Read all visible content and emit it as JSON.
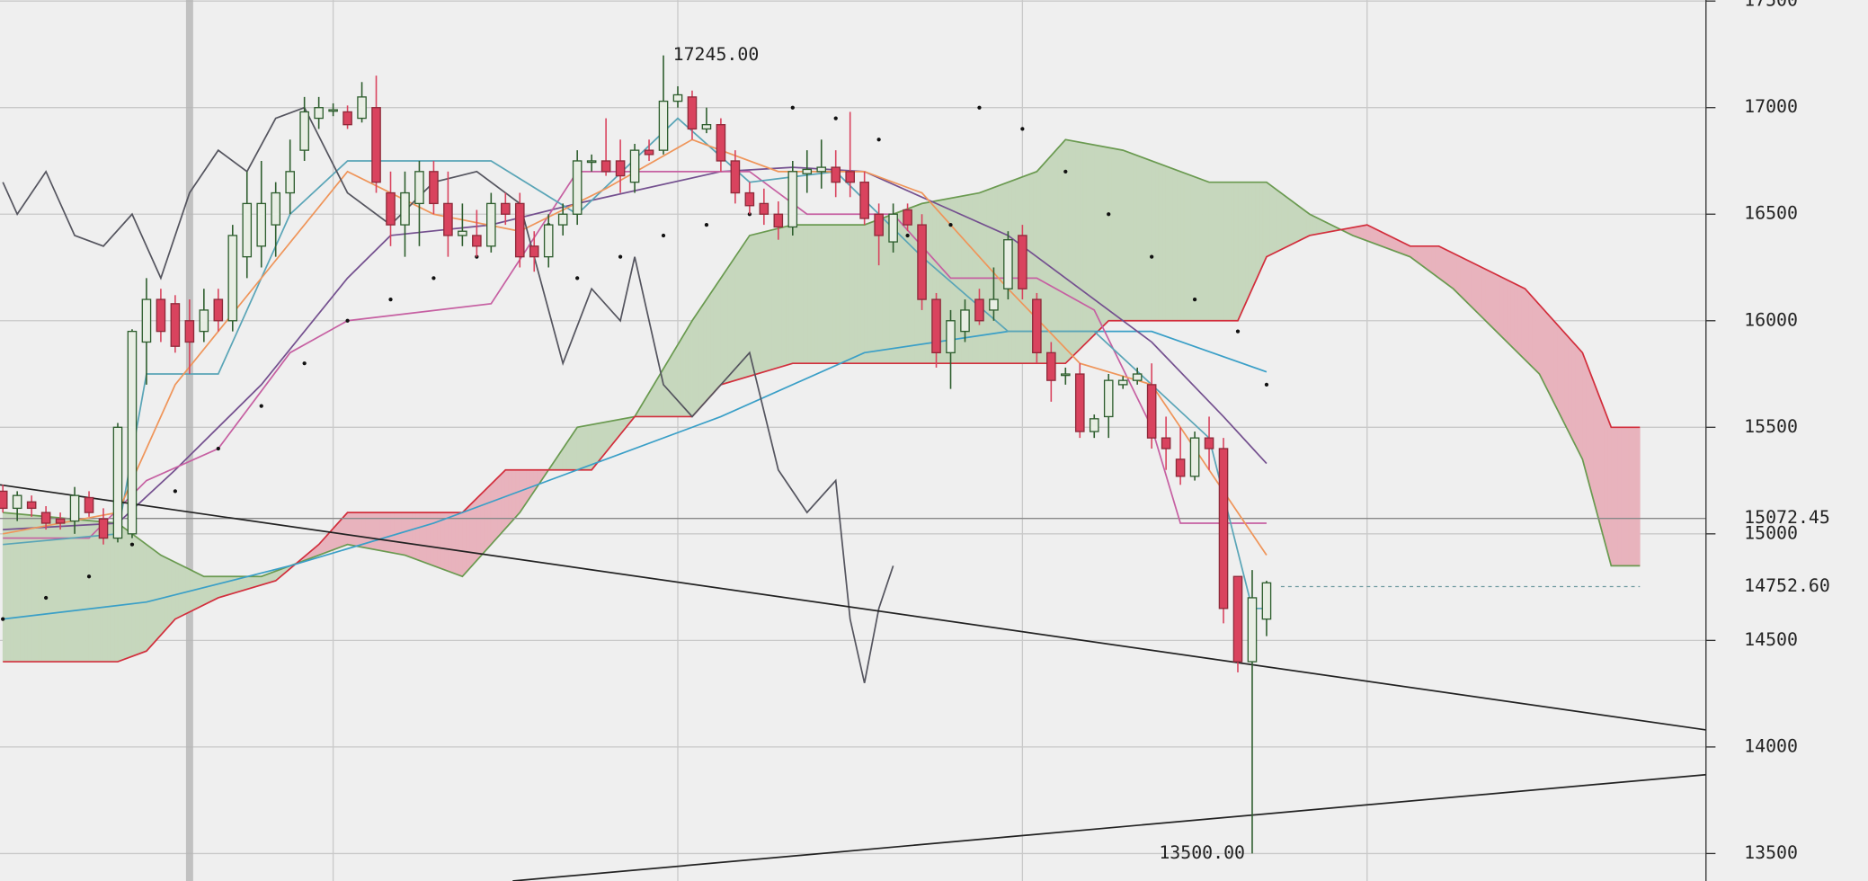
{
  "chart_data": {
    "type": "candlestick",
    "xlim": [
      -0.2,
      118.6
    ],
    "ylim": [
      13371,
      17505
    ],
    "yticks": [
      13500,
      14000,
      14500,
      15000,
      15500,
      16000,
      16500,
      17000,
      17500
    ],
    "xgrid": [
      23,
      47,
      71,
      95
    ],
    "highlight_x": 13,
    "grid": true,
    "up_color": "#2e5e2e",
    "down_color": "#d9435e",
    "open": [
      15200,
      15120,
      15150,
      15100,
      15070,
      15060,
      15170,
      15070,
      14980,
      15000,
      15900,
      16100,
      16080,
      16000,
      15950,
      16100,
      16000,
      16300,
      16350,
      16450,
      16600,
      16800,
      16950,
      16990,
      16980,
      16950,
      17000,
      16600,
      16450,
      16550,
      16700,
      16550,
      16400,
      16400,
      16350,
      16550,
      16550,
      16350,
      16300,
      16450,
      16500,
      16750,
      16750,
      16750,
      16650,
      16800,
      16800,
      17030,
      17050,
      16900,
      16920,
      16750,
      16600,
      16550,
      16500,
      16440,
      16690,
      16700,
      16720,
      16700,
      16650,
      16500,
      16370,
      16520,
      16450,
      16100,
      15850,
      15950,
      16100,
      16050,
      16150,
      16400,
      16100,
      15850,
      15750,
      15750,
      15480,
      15550,
      15700,
      15720,
      15700,
      15450,
      15350,
      15270,
      15450,
      15400,
      14800,
      14400,
      14600
    ],
    "high": [
      15230,
      15200,
      15180,
      15130,
      15100,
      15220,
      15200,
      15120,
      15520,
      15960,
      16200,
      16150,
      16120,
      16100,
      16150,
      16150,
      16450,
      16700,
      16750,
      16650,
      16850,
      17050,
      17050,
      17020,
      17010,
      17120,
      17150,
      16700,
      16700,
      16750,
      16750,
      16700,
      16550,
      16520,
      16600,
      16600,
      16600,
      16420,
      16500,
      16550,
      16800,
      16780,
      16950,
      16850,
      16830,
      16850,
      17245,
      17100,
      17080,
      17000,
      16950,
      16800,
      16650,
      16620,
      16560,
      16750,
      16800,
      16850,
      16800,
      16980,
      16700,
      16550,
      16550,
      16550,
      16500,
      16130,
      16050,
      16100,
      16150,
      16250,
      16420,
      16450,
      16130,
      15900,
      15780,
      15800,
      15560,
      15750,
      15740,
      15780,
      15800,
      15550,
      15500,
      15480,
      15550,
      15450,
      14800,
      14830,
      14780
    ],
    "low": [
      15100,
      15060,
      15080,
      15020,
      15020,
      15000,
      15080,
      14950,
      14960,
      14980,
      15700,
      15900,
      15850,
      15750,
      15900,
      15950,
      15950,
      16200,
      16250,
      16300,
      16500,
      16750,
      16900,
      16960,
      16900,
      16930,
      16600,
      16350,
      16300,
      16350,
      16500,
      16300,
      16350,
      16300,
      16320,
      16450,
      16250,
      16230,
      16250,
      16400,
      16450,
      16700,
      16680,
      16600,
      16600,
      16750,
      16780,
      17000,
      16850,
      16880,
      16700,
      16550,
      16500,
      16450,
      16380,
      16400,
      16600,
      16620,
      16580,
      16580,
      16450,
      16260,
      16320,
      16420,
      16050,
      15780,
      15680,
      15900,
      15980,
      16000,
      16100,
      16100,
      15800,
      15620,
      15700,
      15450,
      15450,
      15450,
      15680,
      15700,
      15400,
      15300,
      15230,
      15250,
      15300,
      14580,
      14350,
      13500,
      14520
    ],
    "close": [
      15120,
      15180,
      15120,
      15050,
      15050,
      15180,
      15100,
      14980,
      15500,
      15950,
      16100,
      15950,
      15880,
      15900,
      16050,
      16000,
      16400,
      16550,
      16550,
      16600,
      16700,
      16980,
      17000,
      16990,
      16920,
      17050,
      16650,
      16450,
      16600,
      16700,
      16550,
      16400,
      16420,
      16350,
      16550,
      16500,
      16300,
      16300,
      16450,
      16500,
      16750,
      16750,
      16700,
      16680,
      16800,
      16780,
      17030,
      17060,
      16900,
      16920,
      16750,
      16600,
      16540,
      16500,
      16440,
      16700,
      16710,
      16720,
      16650,
      16650,
      16480,
      16400,
      16500,
      16450,
      16100,
      15850,
      16000,
      16050,
      16000,
      16100,
      16380,
      16150,
      15850,
      15720,
      15750,
      15480,
      15540,
      15720,
      15720,
      15750,
      15450,
      15400,
      15270,
      15450,
      15400,
      14650,
      14400,
      14700,
      14770
    ],
    "lines": [
      {
        "color": "#3a9fc7",
        "x": [
          0,
          10,
          20,
          30,
          40,
          50,
          60,
          70,
          80,
          88
        ],
        "values": [
          14600,
          14680,
          14850,
          15050,
          15300,
          15550,
          15850,
          15950,
          15950,
          15760
        ]
      },
      {
        "color": "#74508f",
        "x": [
          0,
          8,
          12,
          18,
          24,
          27,
          34,
          40,
          50,
          55,
          60,
          65,
          70,
          75,
          80,
          85,
          88
        ],
        "values": [
          15020,
          15050,
          15300,
          15700,
          16200,
          16400,
          16450,
          16550,
          16700,
          16720,
          16700,
          16550,
          16400,
          16150,
          15900,
          15550,
          15330
        ]
      },
      {
        "color": "#c660a2",
        "x": [
          0,
          6,
          10,
          15,
          20,
          24,
          34,
          40,
          48,
          52,
          56,
          62,
          66,
          72,
          76,
          80,
          82,
          88
        ],
        "values": [
          14980,
          14980,
          15250,
          15400,
          15850,
          16000,
          16080,
          16700,
          16700,
          16700,
          16500,
          16500,
          16200,
          16200,
          16050,
          15500,
          15050,
          15050
        ]
      },
      {
        "color": "#5aa5b7",
        "x": [
          0,
          8,
          10,
          15,
          20,
          24,
          34,
          40,
          47,
          52,
          58,
          64,
          70,
          76,
          80,
          84,
          87,
          88
        ],
        "values": [
          14950,
          15000,
          15750,
          15750,
          16500,
          16750,
          16750,
          16500,
          16950,
          16650,
          16700,
          16300,
          15950,
          15950,
          15700,
          15450,
          14650,
          14650
        ]
      },
      {
        "color": "#ef955a",
        "x": [
          0,
          8,
          12,
          18,
          24,
          30,
          36,
          42,
          48,
          54,
          60,
          64,
          70,
          75,
          80,
          84,
          88
        ],
        "values": [
          15000,
          15100,
          15700,
          16200,
          16700,
          16500,
          16420,
          16620,
          16850,
          16700,
          16700,
          16600,
          16150,
          15800,
          15700,
          15300,
          14900
        ]
      },
      {
        "color": "#55555f",
        "x": [
          0,
          1,
          3,
          5,
          7,
          9,
          11,
          13,
          15,
          17,
          19,
          21,
          24,
          27,
          30,
          33,
          36,
          39,
          41,
          43,
          44,
          46,
          48,
          50,
          52,
          54,
          56,
          58,
          59,
          60,
          61,
          62
        ],
        "values": [
          16650,
          16500,
          16700,
          16400,
          16350,
          16500,
          16200,
          16600,
          16800,
          16700,
          16950,
          17000,
          16600,
          16450,
          16650,
          16700,
          16550,
          15800,
          16150,
          16000,
          16300,
          15700,
          15550,
          15700,
          15850,
          15300,
          15100,
          15250,
          14600,
          14300,
          14650,
          14850
        ]
      }
    ],
    "cloud": {
      "up_color": "#c6d7bd",
      "down_color": "#e8b3bd",
      "span_a": {
        "color": "#6a9a50",
        "x": [
          0,
          8,
          11,
          14,
          18,
          22,
          24,
          28,
          32,
          34,
          36,
          40,
          44,
          48,
          50,
          52,
          55,
          60,
          64,
          68,
          72,
          74,
          78,
          84,
          88,
          91,
          94,
          98,
          101,
          107,
          110,
          112,
          114
        ],
        "values": [
          15100,
          15050,
          14900,
          14800,
          14800,
          14900,
          14950,
          14900,
          14800,
          14950,
          15100,
          15500,
          15550,
          16000,
          16200,
          16400,
          16450,
          16450,
          16550,
          16600,
          16700,
          16850,
          16800,
          16650,
          16650,
          16500,
          16400,
          16300,
          16150,
          15750,
          15350,
          14850,
          14850
        ]
      },
      "span_b": {
        "color": "#d22e3c",
        "x": [
          0,
          8,
          10,
          12,
          15,
          19,
          22,
          24,
          32,
          35,
          41,
          44,
          48,
          50,
          55,
          74,
          77,
          86,
          88,
          91,
          95,
          98,
          100,
          106,
          110,
          112,
          114
        ],
        "values": [
          14400,
          14400,
          14450,
          14600,
          14700,
          14780,
          14950,
          15100,
          15100,
          15300,
          15300,
          15550,
          15550,
          15700,
          15800,
          15800,
          16000,
          16000,
          16300,
          16400,
          16450,
          16350,
          16350,
          16150,
          15850,
          15500,
          15500
        ]
      }
    },
    "sar": {
      "color": "#111111",
      "x": [
        0,
        3,
        6,
        9,
        12,
        15,
        18,
        21,
        24,
        27,
        30,
        33,
        36,
        38,
        40,
        43,
        46,
        49,
        52,
        55,
        58,
        61,
        63,
        66,
        68,
        71,
        74,
        77,
        80,
        83,
        86,
        88
      ],
      "values": [
        14600,
        14700,
        14800,
        14950,
        15200,
        15400,
        15600,
        15800,
        16000,
        16100,
        16200,
        16300,
        16350,
        16450,
        16200,
        16300,
        16400,
        16450,
        16500,
        17000,
        16950,
        16850,
        16400,
        16450,
        17000,
        16900,
        16700,
        16500,
        16300,
        16100,
        15950,
        15700
      ]
    },
    "trendlines": [
      {
        "color": "#222222",
        "x": [
          -0.2,
          118.6
        ],
        "values": [
          15230,
          14080
        ]
      },
      {
        "color": "#222222",
        "x": [
          35.5,
          118.6
        ],
        "values": [
          13371,
          13870
        ]
      }
    ],
    "price_lines": [
      {
        "value": 15072.45,
        "label": "15072.45",
        "color": "#888888",
        "style": "solid"
      },
      {
        "value": 14752.6,
        "label": "14752.60",
        "color": "#6f9aa0",
        "style": "dashed"
      }
    ],
    "annotations": [
      {
        "x": 46,
        "value": 17245,
        "label": "17245.00"
      },
      {
        "x": 87,
        "value": 13500,
        "label": "13500.00"
      }
    ]
  }
}
